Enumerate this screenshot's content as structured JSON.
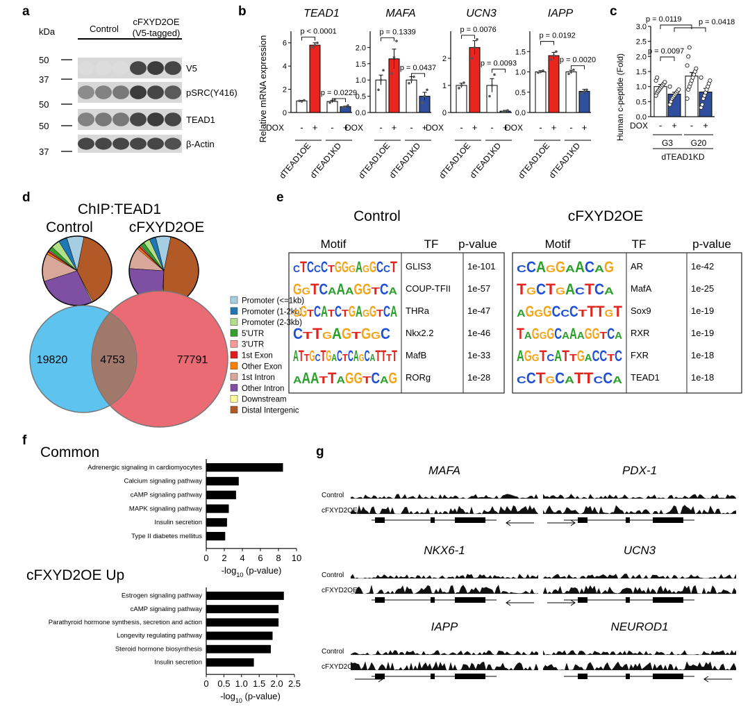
{
  "panel_labels": {
    "a": "a",
    "b": "b",
    "c": "c",
    "d": "d",
    "e": "e",
    "f": "f",
    "g": "g"
  },
  "panel_a": {
    "kda": "kDa",
    "group_control": "Control",
    "group_oe_line1": "cFXYD2OE",
    "group_oe_line2": "(V5-tagged)",
    "markers": [
      "50",
      "37",
      "50",
      "50",
      "37"
    ],
    "bands": [
      "V5",
      "pSRC(Y416)",
      "TEAD1",
      "β-Actin"
    ]
  },
  "panel_b": {
    "ylabel": "Relative mRNA expression",
    "dox": "DOX",
    "minus": "-",
    "plus": "+",
    "group_labels": [
      "dTEAD1OE",
      "dTEAD1KD"
    ],
    "colors": {
      "ctrl": "#ffffff",
      "oe": "#e8261f",
      "kd": "#2f4f9e"
    }
  },
  "panel_c": {
    "ylabel": "Human c-peptide (Fold)",
    "dox": "DOX",
    "groups": [
      "G3",
      "G20"
    ],
    "footer": "dTEAD1KD",
    "pvals": [
      "p = 0.0119",
      "p = 0.0418",
      "p = 0.0097"
    ]
  },
  "panel_d": {
    "title": "ChIP:TEAD1",
    "pie_titles": [
      "Control",
      "cFXYD2OE"
    ],
    "venn": [
      "19820",
      "4753",
      "77791"
    ],
    "legend": [
      {
        "label": "Promoter (<=1kb)",
        "color": "#a6cee3"
      },
      {
        "label": "Promoter (1-2kb)",
        "color": "#1f78b4"
      },
      {
        "label": "Promoter (2-3kb)",
        "color": "#b2df8a"
      },
      {
        "label": "5'UTR",
        "color": "#33a02c"
      },
      {
        "label": "3'UTR",
        "color": "#fb9a99"
      },
      {
        "label": "1st Exon",
        "color": "#e31a1c"
      },
      {
        "label": "Other Exon",
        "color": "#ff7f00"
      },
      {
        "label": "1st Intron",
        "color": "#d9a69a"
      },
      {
        "label": "Other Intron",
        "color": "#7e4fa3"
      },
      {
        "label": "Downstream",
        "color": "#ffff99"
      },
      {
        "label": "Distal Intergenic",
        "color": "#b15a28"
      }
    ],
    "pie_values": {
      "Control": [
        8,
        4,
        4,
        2,
        0.5,
        0.5,
        1,
        13,
        27,
        0.5,
        39
      ],
      "cFXYD2OE": [
        7,
        3,
        3,
        2,
        0.5,
        0.5,
        1,
        10,
        25,
        0.5,
        47
      ]
    }
  },
  "panel_e": {
    "headers": [
      "Motif",
      "TF",
      "p-value"
    ],
    "control_title": "Control",
    "oe_title": "cFXYD2OE",
    "control_rows": [
      {
        "motif": "CTCCCTGGGAGGCCT",
        "tf": "GLIS3",
        "p": "1e-101"
      },
      {
        "motif": "GGTCAAAGGTCA",
        "tf": "COUP-TFII",
        "p": "1e-57"
      },
      {
        "motif": "GGTCATCTGAGGTCA",
        "tf": "THRa",
        "p": "1e-47"
      },
      {
        "motif": "CTTGAGTGGC",
        "tf": "Nkx2.2",
        "p": "1e-46"
      },
      {
        "motif": "ATTGCTGACTCAGCATTTT",
        "tf": "MafB",
        "p": "1e-33"
      },
      {
        "motif": "AAATTAGGTCAG",
        "tf": "RORg",
        "p": "1e-28"
      }
    ],
    "oe_rows": [
      {
        "motif": "CCAGGAACAG",
        "tf": "AR",
        "p": "1e-42"
      },
      {
        "motif": "TGCTGACTCA",
        "tf": "MafA",
        "p": "1e-25"
      },
      {
        "motif": "AGGGCCCTTTGT",
        "tf": "Sox9",
        "p": "1e-19"
      },
      {
        "motif": "TAGGGCAAAGGTCA",
        "tf": "RXR",
        "p": "1e-19"
      },
      {
        "motif": "AGGTCATTGACCTC",
        "tf": "FXR",
        "p": "1e-18"
      },
      {
        "motif": "CCTGCATTCCA",
        "tf": "TEAD1",
        "p": "1e-18"
      }
    ]
  },
  "panel_f": {
    "common_title": "Common",
    "up_title": "cFXYD2OE Up",
    "xlabel_prefix": "-log",
    "xlabel_sub": "10",
    "xlabel_suffix": " (p-value)"
  },
  "panel_g": {
    "genes": [
      "MAFA",
      "PDX-1",
      "NKX6-1",
      "UCN3",
      "IAPP",
      "NEUROD1"
    ],
    "tracks": [
      "Control",
      "cFXYD2OE"
    ]
  },
  "chart_data": [
    {
      "type": "bar",
      "panel": "b",
      "title": "TEAD1",
      "ylabel": "Relative mRNA expression",
      "ylim": [
        0,
        7
      ],
      "yticks": [
        "0",
        "2",
        "4",
        "6"
      ],
      "categories": [
        "dTEAD1OE -",
        "dTEAD1OE +",
        "dTEAD1KD -",
        "dTEAD1KD +"
      ],
      "values": [
        1.0,
        5.8,
        0.95,
        0.5
      ],
      "errors": [
        0.05,
        0.2,
        0.1,
        0.05
      ],
      "points": [
        [
          1.0,
          0.95,
          1.05
        ],
        [
          5.6,
          5.8,
          6.0
        ],
        [
          0.85,
          1.0,
          1.1
        ],
        [
          0.45,
          0.5,
          0.6
        ]
      ],
      "pvalues": [
        {
          "text": "p < 0.0001",
          "pair": [
            0,
            1
          ],
          "y": 6.5
        },
        {
          "text": "p = 0.0229",
          "pair": [
            2,
            3
          ],
          "y": 1.2
        }
      ]
    },
    {
      "type": "bar",
      "panel": "b",
      "title": "MAFA",
      "ylim": [
        0,
        2.5
      ],
      "yticks": [
        "0.0",
        "0.5",
        "1.0",
        "1.5",
        "2.0"
      ],
      "categories": [
        "dTEAD1OE -",
        "dTEAD1OE +",
        "dTEAD1KD -",
        "dTEAD1KD +"
      ],
      "values": [
        1.0,
        1.65,
        1.0,
        0.5
      ],
      "errors": [
        0.15,
        0.3,
        0.1,
        0.12
      ],
      "points": [
        [
          0.7,
          1.0,
          1.3
        ],
        [
          1.2,
          1.7,
          2.2
        ],
        [
          0.9,
          1.0,
          1.1
        ],
        [
          0.3,
          0.5,
          0.7
        ]
      ],
      "pvalues": [
        {
          "text": "p = 0.1339",
          "pair": [
            0,
            1
          ],
          "y": 2.3
        },
        {
          "text": "p = 0.0437",
          "pair": [
            2,
            3
          ],
          "y": 1.2
        }
      ]
    },
    {
      "type": "bar",
      "panel": "b",
      "title": "UCN3",
      "ylim": [
        0,
        3
      ],
      "yticks": [
        "0",
        "1",
        "2"
      ],
      "categories": [
        "dTEAD1OE -",
        "dTEAD1OE +",
        "dTEAD1KD -",
        "dTEAD1KD +"
      ],
      "values": [
        1.0,
        2.4,
        1.0,
        0.05
      ],
      "errors": [
        0.08,
        0.25,
        0.25,
        0.03
      ],
      "points": [
        [
          0.9,
          1.0,
          1.1
        ],
        [
          2.0,
          2.4,
          2.7
        ],
        [
          0.6,
          1.0,
          1.4
        ],
        [
          0.02,
          0.05,
          0.08
        ]
      ],
      "pvalues": [
        {
          "text": "p = 0.0076",
          "pair": [
            0,
            1
          ],
          "y": 2.85
        },
        {
          "text": "p = 0.0093",
          "pair": [
            2,
            3
          ],
          "y": 1.6
        }
      ]
    },
    {
      "type": "bar",
      "panel": "b",
      "title": "IAPP",
      "ylim": [
        0,
        2
      ],
      "yticks": [
        "0.0",
        "0.5",
        "1.0",
        "1.5"
      ],
      "categories": [
        "dTEAD1OE -",
        "dTEAD1OE +",
        "dTEAD1KD -",
        "dTEAD1KD +"
      ],
      "values": [
        1.0,
        1.4,
        1.0,
        0.52
      ],
      "errors": [
        0.03,
        0.08,
        0.04,
        0.05
      ],
      "points": [
        [
          0.98,
          1.0,
          1.03
        ],
        [
          1.3,
          1.4,
          1.5
        ],
        [
          0.95,
          1.0,
          1.05
        ],
        [
          0.48,
          0.52,
          0.56
        ]
      ],
      "pvalues": [
        {
          "text": "p = 0.0192",
          "pair": [
            0,
            1
          ],
          "y": 1.75
        },
        {
          "text": "p = 0.0020",
          "pair": [
            2,
            3
          ],
          "y": 1.15
        }
      ]
    },
    {
      "type": "bar",
      "panel": "c",
      "ylabel": "Human c-peptide (Fold)",
      "ylim": [
        0,
        3
      ],
      "yticks": [
        "0.0",
        "0.5",
        "1.0",
        "1.5",
        "2.0",
        "2.5",
        "3.0"
      ],
      "categories": [
        "G3 -",
        "G3 +",
        "G20 -",
        "G20 +"
      ],
      "values": [
        1.0,
        0.75,
        1.35,
        0.82
      ],
      "errors": [
        0.07,
        0.06,
        0.12,
        0.12
      ],
      "points": [
        [
          0.7,
          0.8,
          0.85,
          0.9,
          0.95,
          1.0,
          1.05,
          1.1,
          1.15,
          1.2,
          1.3
        ],
        [
          0.4,
          0.5,
          0.6,
          0.65,
          0.7,
          0.75,
          0.8,
          0.85,
          0.9,
          1.0
        ],
        [
          0.6,
          0.9,
          1.0,
          1.1,
          1.2,
          1.3,
          1.4,
          1.5,
          1.6,
          1.7,
          2.0,
          2.3
        ],
        [
          0.3,
          0.4,
          0.6,
          0.7,
          0.8,
          0.9,
          1.0,
          1.1,
          1.2,
          1.3
        ]
      ]
    },
    {
      "type": "bar",
      "panel": "f",
      "title": "Common",
      "orientation": "horizontal",
      "categories": [
        "Adrenergic signaling in cardiomyocytes",
        "Calcium signaling pathway",
        "cAMP signaling pathway",
        "MAPK signaling pathway",
        "Insulin secretion",
        "Type II diabetes mellitus"
      ],
      "values": [
        8.5,
        3.6,
        3.3,
        2.5,
        2.3,
        2.1
      ],
      "xlim": [
        0,
        10
      ],
      "xticks": [
        "0",
        "2",
        "4",
        "6",
        "8",
        "10"
      ]
    },
    {
      "type": "bar",
      "panel": "f",
      "title": "cFXYD2OE Up",
      "orientation": "horizontal",
      "categories": [
        "Estrogen signaling pathway",
        "cAMP signaling pathway",
        "Parathyroid hormone synthesis, secretion and action",
        "Longevity regulating pathway",
        "Steroid hormone biosynthesis",
        "Insulin secretion"
      ],
      "values": [
        2.2,
        2.05,
        2.05,
        1.88,
        1.83,
        1.35
      ],
      "xlim": [
        0,
        2.5
      ],
      "xticks": [
        "0",
        "0.5",
        "1.0",
        "1.5",
        "2.0",
        "2.5"
      ]
    }
  ]
}
